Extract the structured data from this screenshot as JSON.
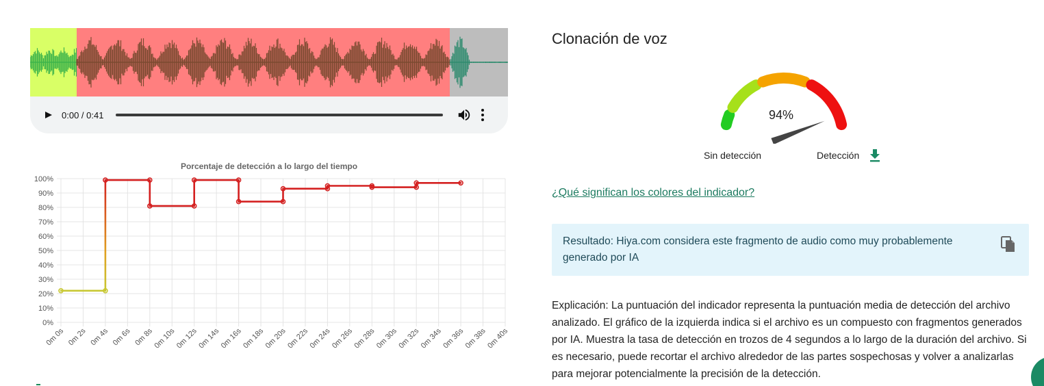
{
  "audio_player": {
    "time": "0:00 / 0:41"
  },
  "waveform": {
    "segments": [
      {
        "start_s": 0,
        "end_s": 4,
        "status": "no-detection",
        "color": "#d9ff66",
        "wave_color": "#3cb44b"
      },
      {
        "start_s": 4,
        "end_s": 36,
        "status": "detection",
        "color": "#ff7f7f",
        "wave_color": "#7a4a30"
      },
      {
        "start_s": 36,
        "end_s": 41,
        "status": "not-analyzed",
        "color": "#bdbdbd",
        "wave_color": "#2e8b6e"
      }
    ],
    "duration_s": 41
  },
  "chart_data": {
    "type": "line",
    "title": "Porcentaje de detección a lo largo del tiempo",
    "x_tick_labels": [
      "0m 0s",
      "0m 2s",
      "0m 4s",
      "0m 6s",
      "0m 8s",
      "0m 10s",
      "0m 12s",
      "0m 14s",
      "0m 16s",
      "0m 18s",
      "0m 20s",
      "0m 22s",
      "0m 24s",
      "0m 26s",
      "0m 28s",
      "0m 30s",
      "0m 32s",
      "0m 34s",
      "0m 36s",
      "0m 38s",
      "0m 40s"
    ],
    "y_tick_labels": [
      "100%",
      "90%",
      "80%",
      "70%",
      "60%",
      "50%",
      "40%",
      "30%",
      "20%",
      "10%",
      "0%"
    ],
    "xlim": [
      0,
      40
    ],
    "ylim": [
      0,
      100
    ],
    "grid": true,
    "step": true,
    "series": [
      {
        "points": [
          {
            "x": 0,
            "y": 22
          },
          {
            "x": 4,
            "y": 22
          },
          {
            "x": 4,
            "y": 99
          },
          {
            "x": 8,
            "y": 99
          },
          {
            "x": 8,
            "y": 81
          },
          {
            "x": 12,
            "y": 81
          },
          {
            "x": 12,
            "y": 99
          },
          {
            "x": 16,
            "y": 99
          },
          {
            "x": 16,
            "y": 84
          },
          {
            "x": 20,
            "y": 84
          },
          {
            "x": 20,
            "y": 93
          },
          {
            "x": 24,
            "y": 93
          },
          {
            "x": 24,
            "y": 95
          },
          {
            "x": 28,
            "y": 95
          },
          {
            "x": 28,
            "y": 94
          },
          {
            "x": 32,
            "y": 94
          },
          {
            "x": 32,
            "y": 97
          },
          {
            "x": 36,
            "y": 97
          }
        ],
        "low_color": "#c8c832",
        "high_color": "#d42020"
      }
    ]
  },
  "section": {
    "title": "Clonación de voz"
  },
  "gauge": {
    "value_text": "94%",
    "value": 94,
    "label_left": "Sin detección",
    "label_right": "Detección",
    "colors": [
      "#22cc22",
      "#a6e01a",
      "#f5a300",
      "#ee1111"
    ],
    "needle_color": "#444444"
  },
  "links": {
    "colors_meaning": "¿Qué significan los colores del indicador?"
  },
  "result": {
    "text": "Resultado: Hiya.com considera este fragmento de audio como muy probablemente generado por IA"
  },
  "explanation": {
    "text": "Explicación: La puntuación del indicador representa la puntuación media de detección del archivo analizado. El gráfico de la izquierda indica si el archivo es un compuesto con fragmentos generados por IA. Muestra la tasa de detección en trozos de 4 segundos a lo largo de la duración del archivo. Si es necesario, puede recortar el archivo alrededor de las partes sospechosas y volver a analizarlas para mejorar potencialmente la precisión de la detección."
  },
  "colors": {
    "accent": "#1b7a5f",
    "result_bg": "#e3f4fb"
  }
}
